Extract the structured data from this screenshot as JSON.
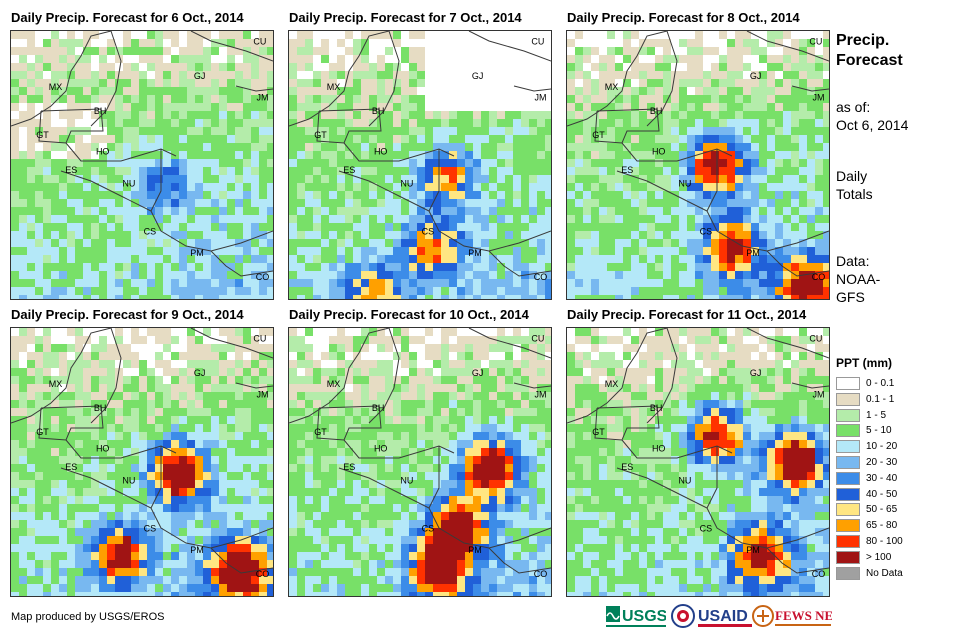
{
  "panels": [
    {
      "title": "Daily Precip. Forecast for 6 Oct., 2014",
      "seed": 11,
      "hot": [
        [
          0.55,
          0.55,
          1.2
        ]
      ]
    },
    {
      "title": "Daily Precip. Forecast for 7 Oct., 2014",
      "seed": 23,
      "hot": [
        [
          0.58,
          0.52,
          2.0
        ],
        [
          0.52,
          0.78,
          2.0
        ],
        [
          0.3,
          0.95,
          1.8
        ]
      ]
    },
    {
      "title": "Daily Precip. Forecast for 8 Oct., 2014",
      "seed": 37,
      "hot": [
        [
          0.55,
          0.48,
          3.0
        ],
        [
          0.6,
          0.78,
          2.4
        ],
        [
          0.9,
          0.92,
          2.6
        ]
      ]
    },
    {
      "title": "Daily Precip. Forecast for 9 Oct., 2014",
      "seed": 41,
      "hot": [
        [
          0.62,
          0.52,
          3.2
        ],
        [
          0.4,
          0.82,
          2.6
        ],
        [
          0.85,
          0.88,
          3.0
        ]
      ]
    },
    {
      "title": "Daily Precip. Forecast for 10 Oct., 2014",
      "seed": 53,
      "hot": [
        [
          0.75,
          0.5,
          3.0
        ],
        [
          0.62,
          0.72,
          2.8
        ],
        [
          0.55,
          0.88,
          2.8
        ]
      ]
    },
    {
      "title": "Daily Precip. Forecast for 11 Oct., 2014",
      "seed": 67,
      "hot": [
        [
          0.85,
          0.48,
          3.2
        ],
        [
          0.55,
          0.38,
          2.8
        ],
        [
          0.72,
          0.82,
          2.4
        ]
      ]
    }
  ],
  "country_labels": [
    "MX",
    "BH",
    "GT",
    "HO",
    "ES",
    "NU",
    "CS",
    "PM",
    "CO",
    "GJ",
    "JM",
    "CU"
  ],
  "sidebar": {
    "title_line1": "Precip.",
    "title_line2": "Forecast",
    "asof_line1": "as of:",
    "asof_line2": "Oct 6, 2014",
    "daily_line1": "Daily",
    "daily_line2": "Totals",
    "data_line1": "Data:",
    "data_line2": "NOAA-",
    "data_line3": "GFS"
  },
  "legend": {
    "title": "PPT (mm)",
    "items": [
      {
        "label": "0 - 0.1",
        "color": "#ffffff"
      },
      {
        "label": "0.1 - 1",
        "color": "#e6dcc3"
      },
      {
        "label": "1 - 5",
        "color": "#b4ecaa"
      },
      {
        "label": "5 - 10",
        "color": "#78e068"
      },
      {
        "label": "10 - 20",
        "color": "#b4e8f8"
      },
      {
        "label": "20 - 30",
        "color": "#78b8f0"
      },
      {
        "label": "30 - 40",
        "color": "#3c8ce8"
      },
      {
        "label": "40 - 50",
        "color": "#2060d8"
      },
      {
        "label": "50 - 65",
        "color": "#ffe682"
      },
      {
        "label": "65 - 80",
        "color": "#ffa000"
      },
      {
        "label": "80 - 100",
        "color": "#ff3200"
      },
      {
        "label": "> 100",
        "color": "#a01414"
      },
      {
        "label": "No Data",
        "color": "#a0a0a0"
      }
    ]
  },
  "footer": "Map produced by USGS/EROS",
  "logos": {
    "usgs": "USGS",
    "usaid": "USAID",
    "fewsnet": "FEWS NET"
  }
}
